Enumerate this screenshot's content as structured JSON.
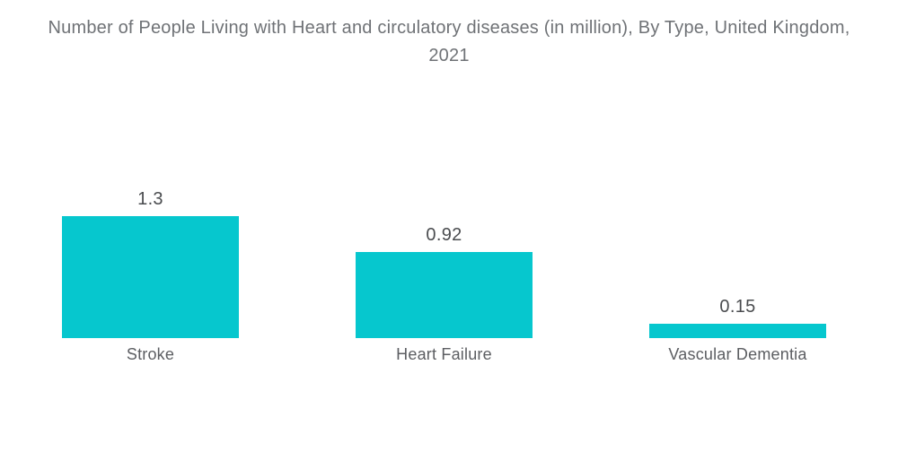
{
  "chart_data": {
    "type": "bar",
    "title": "Number of People Living with Heart and circulatory diseases (in million), By Type, United Kingdom, 2021",
    "categories": [
      "Stroke",
      "Heart Failure",
      "Vascular Dementia"
    ],
    "values": [
      1.3,
      0.92,
      0.15
    ],
    "value_labels": [
      "1.3",
      "0.92",
      "0.15"
    ],
    "xlabel": "",
    "ylabel": "",
    "ylim": [
      0,
      1.3
    ],
    "grid": false,
    "legend": false,
    "bar_color": "#06c7ce",
    "title_color": "#6f7276",
    "value_label_color": "#4a4c4f",
    "category_label_color": "#5c5e62",
    "background_color": "#ffffff"
  }
}
